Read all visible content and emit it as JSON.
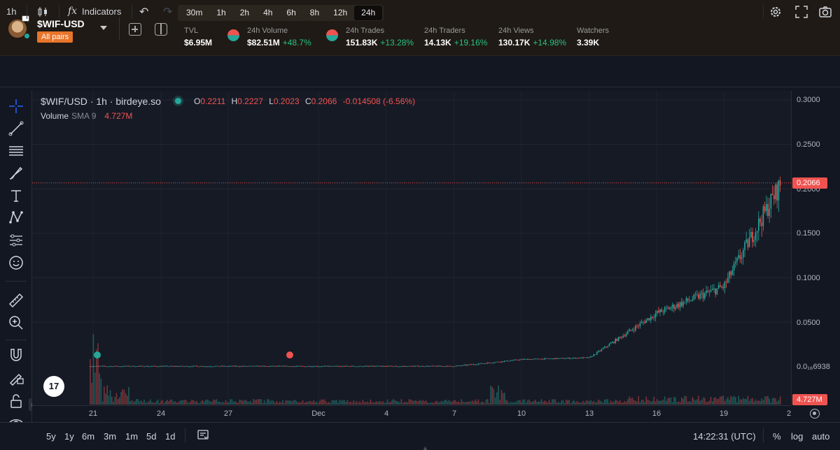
{
  "header": {
    "pair_title": "$WIF-USD",
    "all_pairs": "All pairs",
    "timeframes": [
      "30m",
      "1h",
      "2h",
      "4h",
      "6h",
      "8h",
      "12h",
      "24h"
    ],
    "active_timeframe": "24h",
    "stats": {
      "tvl": {
        "label": "TVL",
        "value": "$6.95M"
      },
      "volume": {
        "label": "24h Volume",
        "value": "$82.51M",
        "change": "+48.7%"
      },
      "trades": {
        "label": "24h Trades",
        "value": "151.83K",
        "change": "+13.28%"
      },
      "traders": {
        "label": "24h Traders",
        "value": "14.13K",
        "change": "+19.16%"
      },
      "views": {
        "label": "24h Views",
        "value": "130.17K",
        "change": "+14.98%"
      },
      "watchers": {
        "label": "Watchers",
        "value": "3.39K"
      }
    }
  },
  "toolbar": {
    "interval": "1h",
    "indicators_label": "Indicators",
    "fx_glyph": "fx"
  },
  "legend": {
    "title": "$WIF/USD · 1h · birdeye.so",
    "ohlc": {
      "o_label": "O",
      "o": "0.2211",
      "h_label": "H",
      "h": "0.2227",
      "l_label": "L",
      "l": "0.2023",
      "c_label": "C",
      "c": "0.2066",
      "change": "-0.014508 (-6.56%)"
    },
    "volume_label": "Volume",
    "sma_label": "SMA 9",
    "volume_value": "4.727M"
  },
  "price_axis": {
    "labels": [
      "0.3000",
      "0.2500",
      "0.2000",
      "0.1500",
      "0.1000",
      "0.0500",
      "0.0₁₆6938"
    ],
    "current_price_tag": "0.2066",
    "volume_tag": "4.727M"
  },
  "time_axis": {
    "labels": [
      "21",
      "24",
      "27",
      "Dec",
      "4",
      "7",
      "10",
      "13",
      "16",
      "19",
      "2"
    ]
  },
  "bottom": {
    "ranges": [
      "5y",
      "1y",
      "6m",
      "3m",
      "1m",
      "5d",
      "1d"
    ],
    "clock": "14:22:31 (UTC)",
    "percent": "%",
    "log": "log",
    "auto": "auto"
  },
  "logo_text": "17",
  "colors": {
    "up": "#26a69a",
    "down": "#ef5350",
    "accent_orange": "#e8752a",
    "change_green": "#26c281",
    "background": "#131722"
  },
  "chart_data": {
    "type": "candlestick",
    "symbol": "$WIF/USD",
    "interval": "1h",
    "x": [
      "Nov 21",
      "Nov 24",
      "Nov 27",
      "Dec 1",
      "Dec 4",
      "Dec 7",
      "Dec 10",
      "Dec 13",
      "Dec 16",
      "Dec 19",
      "Jan 2"
    ],
    "close_approx": [
      0.0002,
      0.0002,
      0.0002,
      0.0002,
      0.0002,
      0.0003,
      0.008,
      0.01,
      0.06,
      0.09,
      0.2066
    ],
    "last_close": 0.2066,
    "ylim": [
      0,
      0.3
    ],
    "yticks": [
      0.05,
      0.1,
      0.15,
      0.2,
      0.25,
      0.3
    ],
    "grid": true
  }
}
